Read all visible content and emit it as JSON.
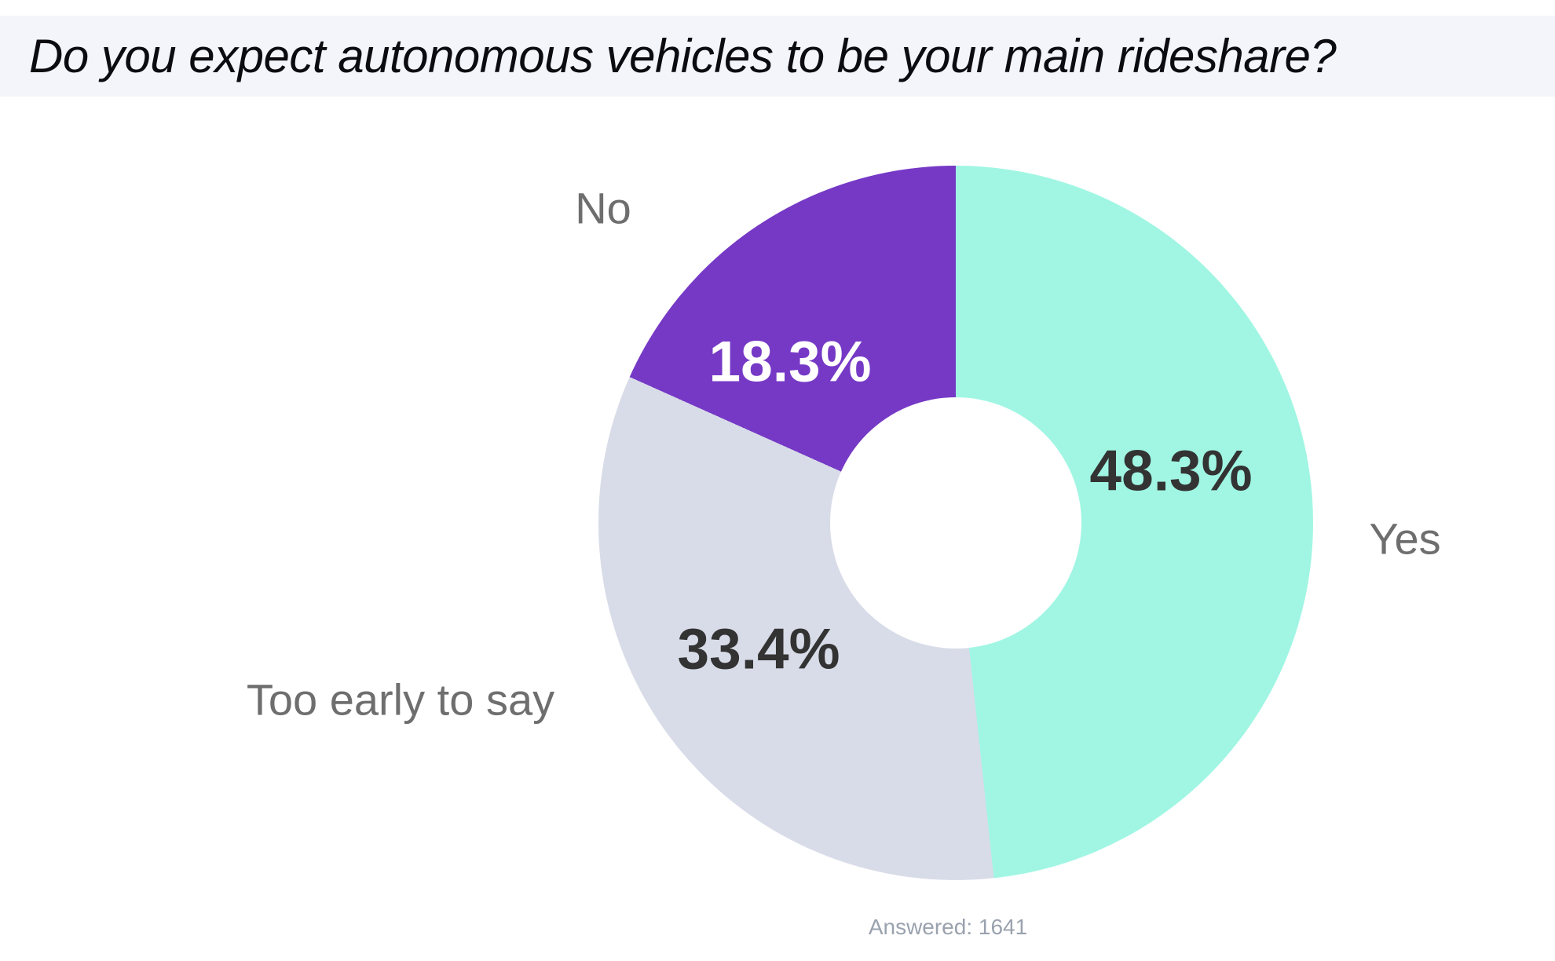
{
  "title": "Do you expect autonomous vehicles to be your main rideshare?",
  "footer": {
    "answered_label": "Answered: 1641"
  },
  "chart_data": {
    "type": "pie",
    "subtype": "donut",
    "title": "Do you expect autonomous vehicles to be your main rideshare?",
    "categories": [
      "Yes",
      "Too early to say",
      "No"
    ],
    "values": [
      48.3,
      33.4,
      18.3
    ],
    "value_labels": [
      "48.3%",
      "33.4%",
      "18.3%"
    ],
    "colors": [
      "#a0f6e3",
      "#d8dce8",
      "#7639c6"
    ],
    "value_label_colors": [
      "#333333",
      "#333333",
      "#ffffff"
    ],
    "answered": 1641,
    "start_angle_deg": 0,
    "direction": "clockwise",
    "inner_radius_ratio": 0.35,
    "legend_position": "outside-labels",
    "grid": false
  },
  "style_colors": {
    "banner_background": "#f3f5fb",
    "title_text": "#0b0b10",
    "category_label_text": "#6e6e6e",
    "footer_text": "#9aa2ae",
    "page_background": "#ffffff"
  }
}
